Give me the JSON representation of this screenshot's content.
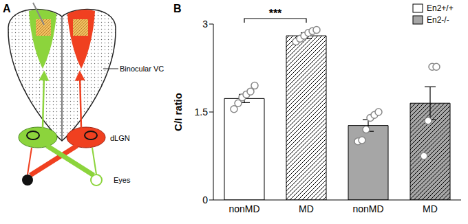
{
  "chart_data": {
    "type": "bar",
    "title": "B",
    "y_label": "C/I ratio",
    "categories": [
      "nonMD",
      "MD",
      "nonMD",
      "MD"
    ],
    "series": [
      {
        "name": "En2+/+",
        "color": "#ffffff",
        "values": [
          1.73,
          2.8,
          null,
          null
        ],
        "errors": [
          0.07,
          0.05,
          null,
          null
        ],
        "points": [
          [
            1.55,
            1.65,
            1.75,
            1.8,
            1.85,
            1.95
          ],
          [
            2.7,
            2.75,
            2.8,
            2.85,
            2.88,
            2.9
          ],
          [],
          []
        ]
      },
      {
        "name": "En2-/-",
        "color": "#a6a6a6",
        "values": [
          null,
          null,
          1.27,
          1.65
        ],
        "errors": [
          null,
          null,
          0.1,
          0.28
        ],
        "points": [
          [],
          [],
          [
            1.0,
            1.02,
            1.2,
            1.4,
            1.45,
            1.5
          ],
          [
            0.75,
            1.35,
            2.27,
            2.27
          ]
        ]
      }
    ],
    "ylim": [
      0,
      3
    ],
    "yticks": [
      0,
      1.5,
      3
    ],
    "legend": "upper right",
    "annotations": [
      {
        "text": "***",
        "from": 0,
        "to": 1
      }
    ]
  },
  "diagram": {
    "label": "A",
    "texts": {
      "cortex": "Binocular VC",
      "thalamus": "dLGN",
      "eyes": "Eyes"
    }
  }
}
